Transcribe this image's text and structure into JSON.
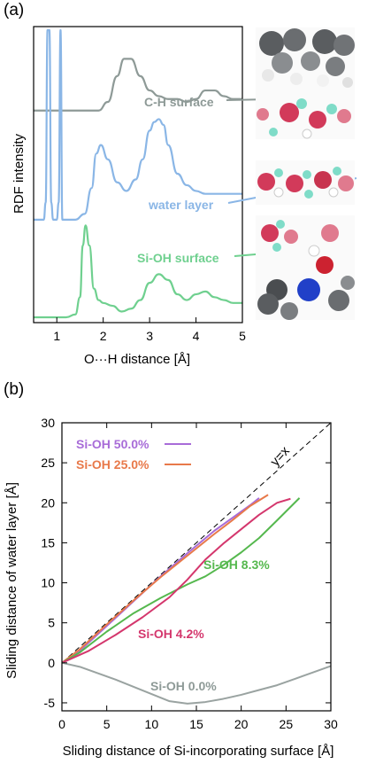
{
  "panel_a_label": "(a)",
  "panel_b_label": "(b)",
  "colors": {
    "ch": "#8e9a97",
    "water": "#8ab6e6",
    "sioh": "#6fd08f",
    "s50": "#a86cd8",
    "s25": "#e8794a",
    "s8": "#55b84e",
    "s4": "#d4376d",
    "s0": "#9aa3a1"
  },
  "chart_data": [
    {
      "type": "line",
      "xlabel": "O···H distance [Å]",
      "ylabel": "RDF intensity",
      "xlim": [
        0.5,
        5
      ],
      "xticks": [
        "1",
        "2",
        "3",
        "4",
        "5"
      ],
      "series": [
        {
          "name": "C-H surface",
          "x": [
            0.5,
            1.9,
            2.1,
            2.3,
            2.45,
            2.6,
            2.8,
            3.0,
            3.2,
            3.4,
            3.6,
            3.8,
            4.0,
            4.2,
            4.4,
            4.6,
            4.8,
            5.0
          ],
          "y": [
            0.72,
            0.72,
            0.75,
            0.84,
            0.9,
            0.9,
            0.84,
            0.79,
            0.77,
            0.76,
            0.76,
            0.75,
            0.76,
            0.79,
            0.79,
            0.77,
            0.76,
            0.76
          ]
        },
        {
          "name": "water layer",
          "x": [
            0.5,
            0.72,
            0.76,
            0.8,
            0.84,
            0.88,
            0.92,
            0.96,
            1.0,
            1.04,
            1.08,
            1.12,
            1.4,
            1.6,
            1.75,
            1.85,
            1.95,
            2.1,
            2.3,
            2.5,
            2.7,
            2.85,
            3.0,
            3.1,
            3.2,
            3.3,
            3.4,
            3.6,
            3.8,
            4.0,
            4.2,
            4.4,
            4.6,
            4.8,
            5.0
          ],
          "y": [
            0.34,
            0.34,
            0.4,
            1.0,
            1.0,
            0.4,
            0.34,
            0.34,
            0.34,
            0.4,
            1.0,
            0.34,
            0.34,
            0.36,
            0.45,
            0.57,
            0.6,
            0.55,
            0.47,
            0.44,
            0.48,
            0.55,
            0.65,
            0.68,
            0.69,
            0.67,
            0.6,
            0.5,
            0.46,
            0.44,
            0.43,
            0.43,
            0.43,
            0.43,
            0.43
          ]
        },
        {
          "name": "Si-OH surface",
          "x": [
            0.5,
            1.2,
            1.4,
            1.5,
            1.56,
            1.62,
            1.7,
            1.8,
            1.9,
            2.0,
            2.2,
            2.4,
            2.6,
            2.8,
            3.0,
            3.2,
            3.4,
            3.6,
            3.8,
            4.0,
            4.2,
            4.4,
            4.6,
            4.8,
            5.0
          ],
          "y": [
            0.0,
            0.0,
            0.01,
            0.07,
            0.25,
            0.32,
            0.25,
            0.1,
            0.06,
            0.05,
            0.04,
            0.02,
            0.03,
            0.06,
            0.12,
            0.15,
            0.13,
            0.08,
            0.06,
            0.08,
            0.09,
            0.07,
            0.06,
            0.05,
            0.05
          ]
        }
      ]
    },
    {
      "type": "line",
      "xlabel": "Sliding distance of Si-incorporating surface [Å]",
      "ylabel": "Sliding distance of water layer [Å]",
      "xlim": [
        0,
        30
      ],
      "ylim": [
        -6,
        30
      ],
      "xticks": [
        "0",
        "5",
        "10",
        "15",
        "20",
        "25",
        "30"
      ],
      "yticks": [
        "-5",
        "0",
        "5",
        "10",
        "15",
        "20",
        "25",
        "30"
      ],
      "reference_label": "y=x",
      "series": [
        {
          "name": "Si-OH 50.0%",
          "x": [
            0,
            2,
            5,
            8,
            11,
            14,
            17,
            19,
            21,
            22
          ],
          "y": [
            0,
            1.5,
            4.6,
            7.7,
            10.8,
            13.7,
            16.5,
            18.1,
            19.7,
            20.6
          ]
        },
        {
          "name": "Si-OH 25.0%",
          "x": [
            0,
            2,
            5,
            8,
            11,
            14,
            17,
            19,
            21,
            23
          ],
          "y": [
            0,
            1.7,
            4.8,
            7.8,
            10.7,
            13.4,
            16.1,
            17.8,
            19.6,
            21.0
          ]
        },
        {
          "name": "Si-OH 8.3%",
          "x": [
            0,
            2,
            5,
            8,
            11,
            14,
            16,
            18,
            20,
            22,
            24,
            26.5
          ],
          "y": [
            0,
            1.3,
            3.9,
            6.2,
            8.1,
            9.8,
            10.8,
            12.2,
            13.8,
            15.6,
            17.8,
            20.6
          ]
        },
        {
          "name": "Si-OH 4.2%",
          "x": [
            0,
            3,
            6,
            9,
            12,
            14,
            16,
            18,
            20,
            22,
            24,
            25.5
          ],
          "y": [
            0,
            1.5,
            3.5,
            5.7,
            8.2,
            10.4,
            12.9,
            14.9,
            16.7,
            18.5,
            20.0,
            20.5
          ]
        },
        {
          "name": "Si-OH 0.0%",
          "x": [
            0,
            2,
            4,
            6,
            8,
            10,
            12,
            14,
            16,
            18,
            20,
            22,
            24,
            26,
            28,
            30
          ],
          "y": [
            0,
            -0.5,
            -1.3,
            -2.1,
            -3.0,
            -3.9,
            -4.8,
            -5.1,
            -4.9,
            -4.5,
            -4.0,
            -3.4,
            -2.8,
            -2.0,
            -1.2,
            -0.4
          ]
        }
      ]
    }
  ]
}
